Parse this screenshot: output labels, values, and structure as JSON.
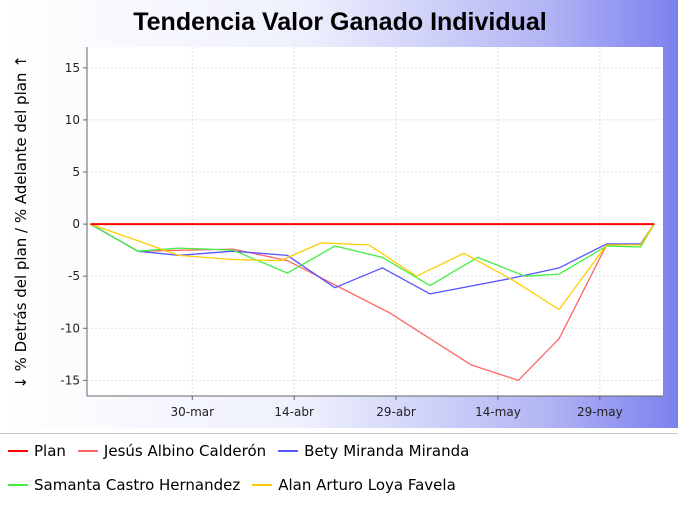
{
  "chart_data": {
    "type": "line",
    "title": "Tendencia Valor Ganado Individual",
    "xlabel": "",
    "ylabel": "↓ % Detrás del plan / % Adelante del plan ↑",
    "ylim": [
      -16.5,
      17
    ],
    "yticks": [
      15,
      10,
      5,
      0,
      -5,
      -10,
      -15
    ],
    "xticks": [
      "30-mar",
      "14-abr",
      "29-abr",
      "14-may",
      "29-may"
    ],
    "grid": true,
    "legend_position": "bottom",
    "series": [
      {
        "name": "Plan",
        "color": "#ff0000",
        "x": [
          "2015-03-15",
          "2015-06-06"
        ],
        "y": [
          0,
          0
        ]
      },
      {
        "name": "Jesús Albino Calderón",
        "color": "#ff6666",
        "x": [
          "2015-03-15",
          "2015-03-22",
          "2015-04-05",
          "2015-04-13",
          "2015-04-28",
          "2015-05-10",
          "2015-05-17",
          "2015-05-23",
          "2015-05-30",
          "2015-06-04",
          "2015-06-06"
        ],
        "y": [
          0,
          -2.6,
          -2.4,
          -3.5,
          -8.5,
          -13.5,
          -15.0,
          -11.0,
          -2.0,
          -2.0,
          0
        ]
      },
      {
        "name": "Bety Miranda Miranda",
        "color": "#5555ff",
        "x": [
          "2015-03-15",
          "2015-03-22",
          "2015-03-28",
          "2015-04-05",
          "2015-04-13",
          "2015-04-20",
          "2015-04-27",
          "2015-05-04",
          "2015-05-16",
          "2015-05-23",
          "2015-05-30",
          "2015-06-04",
          "2015-06-06"
        ],
        "y": [
          0,
          -2.6,
          -3.0,
          -2.6,
          -3.0,
          -6.1,
          -4.2,
          -6.7,
          -5.2,
          -4.2,
          -1.9,
          -1.9,
          0
        ]
      },
      {
        "name": "Samanta Castro Hernandez",
        "color": "#44ee44",
        "x": [
          "2015-03-15",
          "2015-03-22",
          "2015-03-28",
          "2015-04-05",
          "2015-04-13",
          "2015-04-20",
          "2015-04-27",
          "2015-05-04",
          "2015-05-11",
          "2015-05-18",
          "2015-05-23",
          "2015-05-30",
          "2015-06-04",
          "2015-06-06"
        ],
        "y": [
          0,
          -2.6,
          -2.3,
          -2.5,
          -4.7,
          -2.1,
          -3.2,
          -5.9,
          -3.2,
          -5.0,
          -4.8,
          -2.1,
          -2.2,
          0
        ]
      },
      {
        "name": "Alan Arturo Loya Favela",
        "color": "#ffcc00",
        "x": [
          "2015-03-15",
          "2015-03-22",
          "2015-03-28",
          "2015-04-05",
          "2015-04-12",
          "2015-04-18",
          "2015-04-25",
          "2015-05-02",
          "2015-05-09",
          "2015-05-16",
          "2015-05-23",
          "2015-05-30",
          "2015-06-04",
          "2015-06-06"
        ],
        "y": [
          0,
          -1.6,
          -3.0,
          -3.4,
          -3.5,
          -1.8,
          -2.0,
          -5.0,
          -2.8,
          -5.3,
          -8.2,
          -2.0,
          -2.0,
          0
        ]
      }
    ]
  }
}
